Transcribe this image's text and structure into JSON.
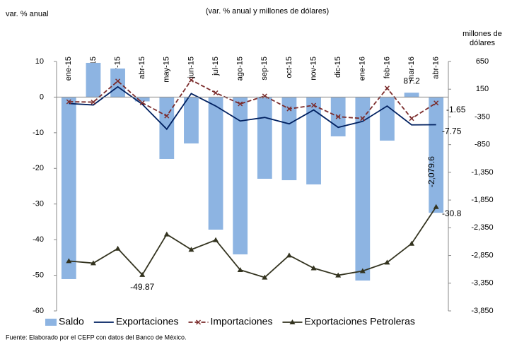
{
  "chart_data": {
    "type": "bar_line",
    "title": "(var. % anual y millones de dólares)",
    "ylabel": "var. % anual",
    "y2label": "millones de dólares",
    "source": "Fuente: Elaborado por el CEFP con datos del Banco de México.",
    "categories": [
      "ene-15",
      "feb-15",
      "mar-15",
      "abr-15",
      "may-15",
      "jun-15",
      "jul-15",
      "ago-15",
      "sep-15",
      "oct-15",
      "nov-15",
      "dic-15",
      "ene-16",
      "feb-16",
      "mar-16",
      "abr-16"
    ],
    "ylim": [
      -60,
      10
    ],
    "yticks": [
      10,
      0,
      -10,
      -20,
      -30,
      -40,
      -50,
      -60
    ],
    "y2lim": [
      -3850,
      650
    ],
    "y2ticks": [
      650,
      150,
      -350,
      -850,
      {
        "value": -1350,
        "label": "-1,350"
      },
      {
        "value": -1850,
        "label": "-1,850"
      },
      {
        "value": -2350,
        "label": "-2,350"
      },
      {
        "value": -2850,
        "label": "-2,850"
      },
      {
        "value": -3350,
        "label": "-3,350"
      },
      {
        "value": -3850,
        "label": "-3,850"
      }
    ],
    "legend": "bottom",
    "series": [
      {
        "name": "Saldo",
        "type": "bar",
        "axis": "y2",
        "color": "#8db4e2",
        "values": [
          -3276,
          625,
          523,
          -70,
          -1109,
          -829,
          -2384,
          -2830,
          -1466,
          -1492,
          -1568,
          -701,
          -3302,
          -778,
          87.2,
          -2079.6
        ],
        "value_labels": [
          null,
          null,
          null,
          null,
          null,
          null,
          null,
          null,
          null,
          null,
          null,
          null,
          null,
          null,
          "87.2",
          "-2,079.6"
        ]
      },
      {
        "name": "Exportaciones",
        "type": "line",
        "color": "#002060",
        "values": [
          -1.8,
          -2.2,
          2.9,
          -2.0,
          -9.0,
          1.0,
          -2.5,
          -6.7,
          -5.7,
          -7.5,
          -3.6,
          -8.5,
          -6.8,
          -2.5,
          -7.8,
          -7.75
        ],
        "value_labels": [
          null,
          null,
          null,
          null,
          null,
          null,
          null,
          null,
          null,
          null,
          null,
          null,
          null,
          null,
          null,
          "-7.75"
        ]
      },
      {
        "name": "Importaciones",
        "type": "line",
        "dash": true,
        "marker": "x",
        "color": "#7b2c2c",
        "values": [
          -1.3,
          -1.4,
          4.5,
          -1.6,
          -5.3,
          4.8,
          1.2,
          -1.9,
          0.3,
          -3.3,
          -2.3,
          -5.5,
          -6.0,
          2.5,
          -6.0,
          -1.65
        ],
        "value_labels": [
          null,
          null,
          null,
          null,
          null,
          null,
          null,
          null,
          null,
          null,
          null,
          null,
          null,
          null,
          null,
          "-1.65"
        ]
      },
      {
        "name": "Exportaciones Petroleras",
        "type": "line",
        "marker": "triangle",
        "color": "#33331f",
        "values": [
          -46.0,
          -46.6,
          -42.5,
          -49.87,
          -38.5,
          -42.8,
          -40.1,
          -48.5,
          -50.6,
          -44.4,
          -48.0,
          -50.0,
          -48.8,
          -46.4,
          -41.1,
          -30.8
        ],
        "value_labels": [
          null,
          null,
          null,
          "-49.87",
          null,
          null,
          null,
          null,
          null,
          null,
          null,
          null,
          null,
          null,
          null,
          "-30.8"
        ]
      }
    ]
  }
}
